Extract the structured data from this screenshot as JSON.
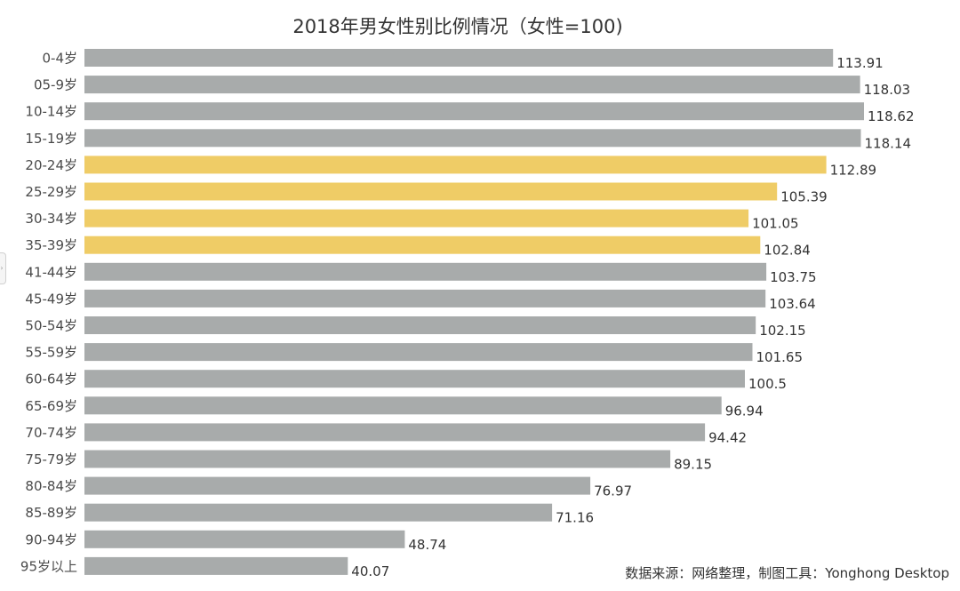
{
  "chart_data": {
    "type": "bar",
    "orientation": "horizontal",
    "title": "2018年男女性别比例情况（女性=100)",
    "categories": [
      "0-4岁",
      "05-9岁",
      "10-14岁",
      "15-19岁",
      "20-24岁",
      "25-29岁",
      "30-34岁",
      "35-39岁",
      "41-44岁",
      "45-49岁",
      "50-54岁",
      "55-59岁",
      "60-64岁",
      "65-69岁",
      "70-74岁",
      "75-79岁",
      "80-84岁",
      "85-89岁",
      "90-94岁",
      "95岁以上"
    ],
    "values": [
      113.91,
      118.03,
      118.62,
      118.14,
      112.89,
      105.39,
      101.05,
      102.84,
      103.75,
      103.64,
      102.15,
      101.65,
      100.5,
      96.94,
      94.42,
      89.15,
      76.97,
      71.16,
      48.74,
      40.07
    ],
    "value_labels": [
      "113.91",
      "118.03",
      "118.62",
      "118.14",
      "112.89",
      "105.39",
      "101.05",
      "102.84",
      "103.75",
      "103.64",
      "102.15",
      "101.65",
      "100.5",
      "96.94",
      "94.42",
      "89.15",
      "76.97",
      "71.16",
      "48.74",
      "40.07"
    ],
    "highlighted_categories": [
      "20-24岁",
      "25-29岁",
      "30-34岁",
      "35-39岁"
    ],
    "colors": {
      "default_bar": "#a8abab",
      "highlight_bar": "#efcc66"
    },
    "xlim": [
      0,
      118.62
    ],
    "grid": false,
    "legend": "none"
  },
  "footer": {
    "source_note": "数据来源：网络整理，制图工具：Yonghong Desktop"
  },
  "handle_icon": "›"
}
